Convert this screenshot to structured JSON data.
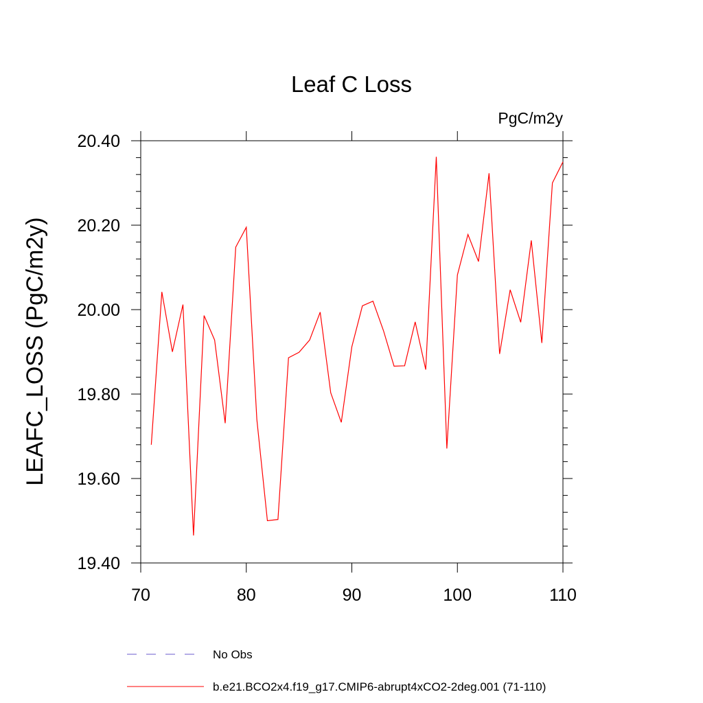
{
  "chart_data": {
    "type": "line",
    "title": "Leaf C Loss",
    "units": "PgC/m2y",
    "ylabel": "LEAFC_LOSS  (PgC/m2y)",
    "xlabel": "",
    "xlim": [
      70,
      110
    ],
    "ylim": [
      19.4,
      20.4
    ],
    "x_ticks": [
      "70",
      "80",
      "90",
      "100",
      "110"
    ],
    "y_ticks": [
      "19.40",
      "19.60",
      "19.80",
      "20.00",
      "20.20",
      "20.40"
    ],
    "grid": false,
    "legend_position": "bottom",
    "x": [
      71,
      72,
      73,
      74,
      75,
      76,
      77,
      78,
      79,
      80,
      81,
      82,
      83,
      84,
      85,
      86,
      87,
      88,
      89,
      90,
      91,
      92,
      93,
      94,
      95,
      96,
      97,
      98,
      99,
      100,
      101,
      102,
      103,
      104,
      105,
      106,
      107,
      108,
      109,
      110
    ],
    "series": [
      {
        "name": "b.e21.BCO2x4.f19_g17.CMIP6-abrupt4xCO2-2deg.001 (71-110)",
        "color": "#ff0000",
        "values": [
          19.68,
          20.042,
          19.9,
          20.012,
          19.465,
          19.986,
          19.928,
          19.731,
          20.148,
          20.195,
          19.74,
          19.5,
          19.503,
          19.886,
          19.899,
          19.928,
          19.994,
          19.803,
          19.733,
          19.912,
          20.009,
          20.02,
          19.95,
          19.866,
          19.867,
          19.971,
          19.858,
          20.362,
          19.671,
          20.082,
          20.178,
          20.114,
          20.323,
          19.895,
          20.047,
          19.97,
          20.164,
          19.921,
          20.3,
          20.35
        ]
      }
    ],
    "legend": [
      {
        "label": "No Obs",
        "color": "#6a5acd",
        "style": "dashed"
      },
      {
        "label": "b.e21.BCO2x4.f19_g17.CMIP6-abrupt4xCO2-2deg.001 (71-110)",
        "color": "#ff0000",
        "style": "solid"
      }
    ]
  }
}
